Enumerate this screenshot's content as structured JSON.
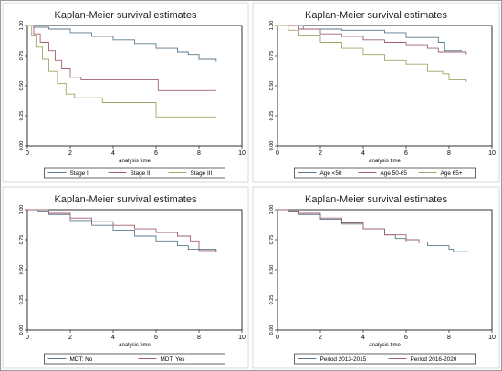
{
  "chart_data": [
    {
      "type": "line",
      "title": "Kaplan-Meier survival estimates",
      "xlabel": "analysis time",
      "xlim": [
        0,
        10
      ],
      "ylim": [
        0,
        1
      ],
      "xticks": [
        "0",
        "2",
        "4",
        "6",
        "8",
        "10"
      ],
      "yticks": [
        "0.00",
        "0.25",
        "0.50",
        "0.75",
        "1.00"
      ],
      "legend": "bottom",
      "series": [
        {
          "name": "Stage I",
          "color": "#5b7a8e",
          "points": [
            [
              0,
              1
            ],
            [
              0.3,
              0.985
            ],
            [
              1,
              0.97
            ],
            [
              2,
              0.94
            ],
            [
              3,
              0.91
            ],
            [
              4,
              0.88
            ],
            [
              5,
              0.85
            ],
            [
              6,
              0.81
            ],
            [
              7,
              0.78
            ],
            [
              7.5,
              0.76
            ],
            [
              8,
              0.72
            ],
            [
              8.8,
              0.7
            ]
          ]
        },
        {
          "name": "Stage II",
          "color": "#a06070",
          "points": [
            [
              0,
              1
            ],
            [
              0.3,
              0.93
            ],
            [
              0.6,
              0.86
            ],
            [
              1,
              0.79
            ],
            [
              1.3,
              0.71
            ],
            [
              1.6,
              0.64
            ],
            [
              2,
              0.57
            ],
            [
              2.5,
              0.55
            ],
            [
              6.1,
              0.46
            ],
            [
              8.8,
              0.46
            ]
          ]
        },
        {
          "name": "Stage III",
          "color": "#a5a468",
          "points": [
            [
              0,
              1
            ],
            [
              0.2,
              0.92
            ],
            [
              0.4,
              0.82
            ],
            [
              0.7,
              0.72
            ],
            [
              1,
              0.62
            ],
            [
              1.4,
              0.52
            ],
            [
              1.8,
              0.43
            ],
            [
              2.2,
              0.4
            ],
            [
              3.5,
              0.36
            ],
            [
              6,
              0.24
            ],
            [
              8.8,
              0.24
            ]
          ]
        }
      ]
    },
    {
      "type": "line",
      "title": "Kaplan-Meier survival estimates",
      "xlabel": "analysis time",
      "xlim": [
        0,
        10
      ],
      "ylim": [
        0,
        1
      ],
      "xticks": [
        "0",
        "2",
        "4",
        "6",
        "8",
        "10"
      ],
      "yticks": [
        "0.00",
        "0.25",
        "0.50",
        "0.75",
        "1.00"
      ],
      "legend": "bottom",
      "series": [
        {
          "name": "Age <50",
          "color": "#5b7a8e",
          "points": [
            [
              0,
              1
            ],
            [
              1,
              1
            ],
            [
              1.2,
              0.97
            ],
            [
              3,
              0.96
            ],
            [
              5,
              0.94
            ],
            [
              6,
              0.9
            ],
            [
              7.5,
              0.86
            ],
            [
              7.8,
              0.79
            ],
            [
              8.6,
              0.79
            ]
          ]
        },
        {
          "name": "Age 50-65",
          "color": "#a06070",
          "points": [
            [
              0,
              1
            ],
            [
              1,
              0.97
            ],
            [
              2,
              0.93
            ],
            [
              3,
              0.91
            ],
            [
              4,
              0.88
            ],
            [
              5,
              0.86
            ],
            [
              6,
              0.84
            ],
            [
              7,
              0.81
            ],
            [
              7.5,
              0.78
            ],
            [
              8.8,
              0.76
            ]
          ]
        },
        {
          "name": "Age 65+",
          "color": "#a5a468",
          "points": [
            [
              0,
              1
            ],
            [
              0.5,
              0.96
            ],
            [
              1,
              0.92
            ],
            [
              2,
              0.86
            ],
            [
              3,
              0.81
            ],
            [
              4,
              0.76
            ],
            [
              5,
              0.71
            ],
            [
              6,
              0.68
            ],
            [
              7,
              0.62
            ],
            [
              7.7,
              0.6
            ],
            [
              8,
              0.55
            ],
            [
              8.8,
              0.53
            ]
          ]
        }
      ]
    },
    {
      "type": "line",
      "title": "Kaplan-Meier survival estimates",
      "xlabel": "analysis time",
      "xlim": [
        0,
        10
      ],
      "ylim": [
        0,
        1
      ],
      "xticks": [
        "0",
        "2",
        "4",
        "6",
        "8",
        "10"
      ],
      "yticks": [
        "0.00",
        "0.25",
        "0.50",
        "0.75",
        "1.00"
      ],
      "legend": "bottom",
      "series": [
        {
          "name": "MDT: No",
          "color": "#5b7a8e",
          "points": [
            [
              0,
              1
            ],
            [
              0.5,
              0.98
            ],
            [
              1,
              0.96
            ],
            [
              2,
              0.91
            ],
            [
              3,
              0.87
            ],
            [
              4,
              0.83
            ],
            [
              5,
              0.78
            ],
            [
              6,
              0.74
            ],
            [
              7,
              0.7
            ],
            [
              7.5,
              0.67
            ],
            [
              8.8,
              0.65
            ]
          ]
        },
        {
          "name": "MDT: Yes",
          "color": "#a06070",
          "points": [
            [
              0,
              1
            ],
            [
              1,
              0.97
            ],
            [
              2,
              0.93
            ],
            [
              3,
              0.9
            ],
            [
              4,
              0.87
            ],
            [
              5,
              0.84
            ],
            [
              6,
              0.81
            ],
            [
              7,
              0.78
            ],
            [
              7.6,
              0.74
            ],
            [
              8,
              0.66
            ],
            [
              8.8,
              0.65
            ]
          ]
        }
      ]
    },
    {
      "type": "line",
      "title": "Kaplan-Meier survival estimates",
      "xlabel": "analysis time",
      "xlim": [
        0,
        10
      ],
      "ylim": [
        0,
        1
      ],
      "xticks": [
        "0",
        "2",
        "4",
        "6",
        "8",
        "10"
      ],
      "yticks": [
        "0.00",
        "0.25",
        "0.50",
        "0.75",
        "1.00"
      ],
      "legend": "bottom",
      "series": [
        {
          "name": "Period  2013-2015",
          "color": "#5b7a8e",
          "points": [
            [
              0,
              1
            ],
            [
              0.5,
              0.98
            ],
            [
              1,
              0.96
            ],
            [
              2,
              0.92
            ],
            [
              3,
              0.88
            ],
            [
              4,
              0.84
            ],
            [
              5,
              0.79
            ],
            [
              5.5,
              0.76
            ],
            [
              6,
              0.73
            ],
            [
              7,
              0.7
            ],
            [
              8,
              0.67
            ],
            [
              8.2,
              0.65
            ],
            [
              8.9,
              0.65
            ]
          ]
        },
        {
          "name": "Period 2016-2020",
          "color": "#a06070",
          "points": [
            [
              0,
              1
            ],
            [
              0.5,
              0.985
            ],
            [
              1,
              0.97
            ],
            [
              2,
              0.93
            ],
            [
              3,
              0.89
            ],
            [
              4,
              0.84
            ],
            [
              5,
              0.79
            ],
            [
              6,
              0.75
            ],
            [
              6.6,
              0.72
            ]
          ]
        }
      ]
    }
  ]
}
